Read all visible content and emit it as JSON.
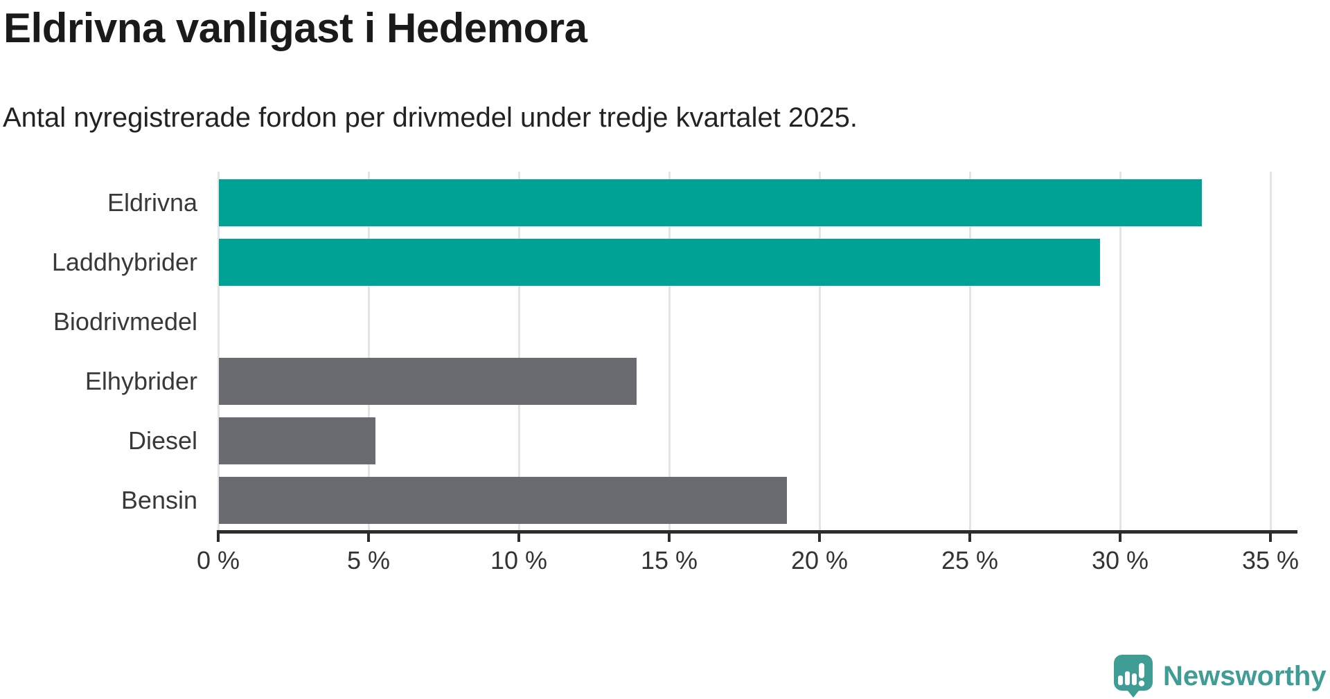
{
  "chart_data": {
    "type": "bar",
    "orientation": "horizontal",
    "title": "Eldrivna vanligast i Hedemora",
    "subtitle": "Antal nyregistrerade fordon per drivmedel under tredje kvartalet 2025.",
    "categories": [
      "Eldrivna",
      "Laddhybrider",
      "Biodrivmedel",
      "Elhybrider",
      "Diesel",
      "Bensin"
    ],
    "values": [
      32.7,
      29.3,
      0,
      13.9,
      5.2,
      18.9
    ],
    "unit": "%",
    "bar_colors": [
      "#00a296",
      "#00a296",
      "#6a6a71",
      "#6a6a71",
      "#6a6a71",
      "#6a6a71"
    ],
    "highlight_color": "#00a296",
    "default_color": "#6a6a71",
    "xlabel": "",
    "ylabel": "",
    "xlim": [
      0,
      35.9
    ],
    "x_tick_step": 5,
    "x_tick_values": [
      0,
      5,
      10,
      15,
      20,
      25,
      30,
      35
    ],
    "x_tick_labels": [
      "0 %",
      "5 %",
      "10 %",
      "15 %",
      "20 %",
      "25 %",
      "30 %",
      "35 %"
    ],
    "grid": true,
    "legend": false
  },
  "footer": {
    "brand": "Newsworthy",
    "brand_color": "#3f9d96",
    "logo_icon": "newsworthy-speech-bubble-chart-icon"
  }
}
